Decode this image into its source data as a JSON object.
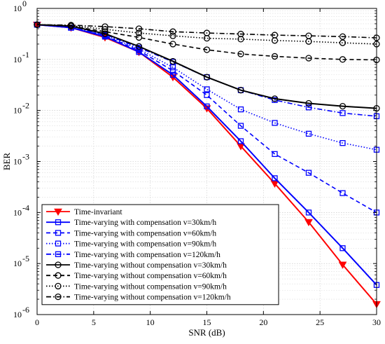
{
  "chart_data": {
    "type": "line",
    "title": "",
    "xlabel": "SNR (dB)",
    "ylabel": "BER",
    "xlim": [
      0,
      30
    ],
    "ylim": [
      1e-06,
      1
    ],
    "yscale": "log",
    "grid": true,
    "legend_position": "bottom-left",
    "x_ticks": [
      "0",
      "5",
      "10",
      "15",
      "20",
      "25",
      "30"
    ],
    "y_ticks": [
      {
        "base": "10",
        "exp": "0"
      },
      {
        "base": "10",
        "exp": "-1"
      },
      {
        "base": "10",
        "exp": "-2"
      },
      {
        "base": "10",
        "exp": "-3"
      },
      {
        "base": "10",
        "exp": "-4"
      },
      {
        "base": "10",
        "exp": "-5"
      },
      {
        "base": "10",
        "exp": "-6"
      }
    ],
    "x": [
      0,
      3,
      6,
      9,
      12,
      15,
      18,
      21,
      24,
      27,
      30
    ],
    "series": [
      {
        "name": "Time-invariant",
        "color": "#ff0000",
        "dash": "solid",
        "marker": "triangle-down",
        "values": [
          0.48,
          0.42,
          0.27,
          0.14,
          0.045,
          0.011,
          0.002,
          0.00037,
          6.5e-05,
          9.5e-06,
          1.6e-06
        ]
      },
      {
        "name": "Time-varying with compensation  v=30km/h",
        "color": "#0000ff",
        "dash": "solid",
        "marker": "square",
        "values": [
          0.48,
          0.42,
          0.28,
          0.14,
          0.05,
          0.012,
          0.0025,
          0.00047,
          0.0001,
          2e-05,
          3.8e-06
        ]
      },
      {
        "name": "Time-varying with compensation  v=60km/h",
        "color": "#0000ff",
        "dash": "dash",
        "marker": "square",
        "values": [
          0.48,
          0.42,
          0.29,
          0.15,
          0.06,
          0.02,
          0.005,
          0.0014,
          0.0006,
          0.00024,
          0.0001
        ]
      },
      {
        "name": "Time-varying with compensation  v=90km/h",
        "color": "#0000ff",
        "dash": "dot",
        "marker": "square",
        "values": [
          0.48,
          0.42,
          0.3,
          0.16,
          0.07,
          0.026,
          0.0105,
          0.0057,
          0.0035,
          0.0023,
          0.0017
        ]
      },
      {
        "name": "Time-varying with compensation  v=120km/h",
        "color": "#0000ff",
        "dash": "dashdot",
        "marker": "square",
        "values": [
          0.48,
          0.42,
          0.31,
          0.17,
          0.09,
          0.045,
          0.025,
          0.016,
          0.0115,
          0.0089,
          0.0077
        ]
      },
      {
        "name": "Time-varying without compensation  v=30km/h",
        "color": "#000000",
        "dash": "solid",
        "marker": "circle",
        "values": [
          0.48,
          0.45,
          0.32,
          0.18,
          0.092,
          0.045,
          0.025,
          0.017,
          0.0138,
          0.0121,
          0.011
        ]
      },
      {
        "name": "Time-varying without compensation  v=60km/h",
        "color": "#000000",
        "dash": "dash",
        "marker": "circle",
        "values": [
          0.48,
          0.45,
          0.35,
          0.27,
          0.2,
          0.155,
          0.128,
          0.115,
          0.106,
          0.1,
          0.098
        ]
      },
      {
        "name": "Time-varying without compensation  v=90km/h",
        "color": "#000000",
        "dash": "dot",
        "marker": "circle",
        "values": [
          0.48,
          0.46,
          0.39,
          0.33,
          0.29,
          0.26,
          0.25,
          0.235,
          0.225,
          0.212,
          0.2
        ]
      },
      {
        "name": "Time-varying without compensation v=120km/h",
        "color": "#000000",
        "dash": "dashdot",
        "marker": "circle",
        "values": [
          0.48,
          0.47,
          0.44,
          0.4,
          0.35,
          0.33,
          0.315,
          0.3,
          0.29,
          0.28,
          0.265
        ]
      }
    ]
  }
}
